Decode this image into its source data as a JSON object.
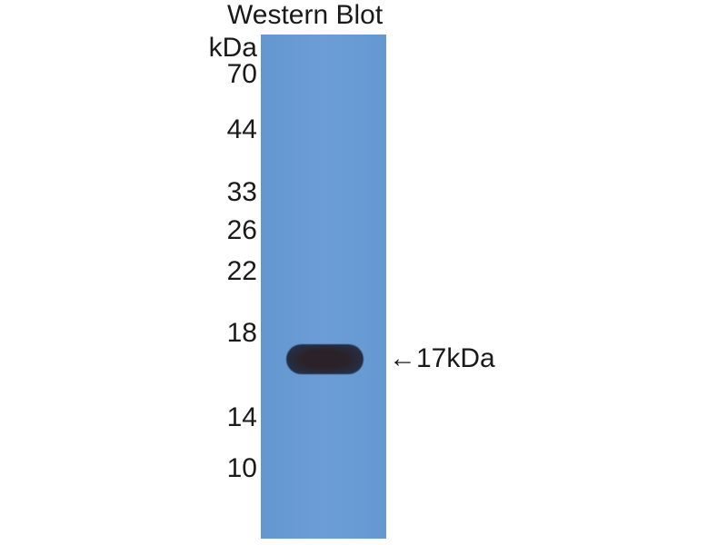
{
  "title": "Western Blot",
  "unit": "kDa",
  "markers": [
    "70",
    "44",
    "33",
    "26",
    "22",
    "18",
    "14",
    "10"
  ],
  "band_annotation": "←17kDa",
  "colors": {
    "membrane": "#6a9bd3",
    "band": "#2a2228"
  }
}
